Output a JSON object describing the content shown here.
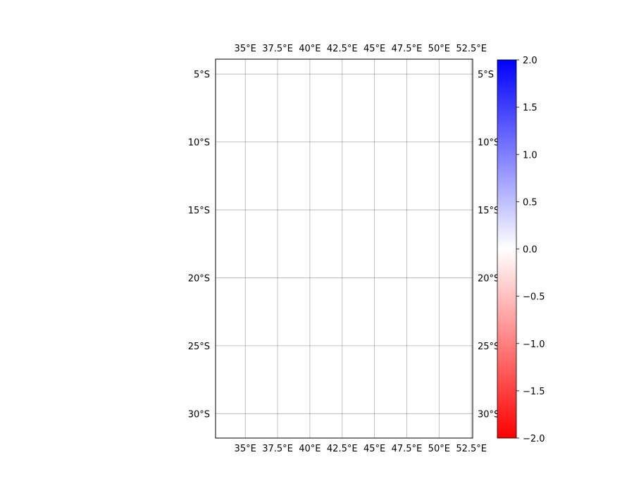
{
  "chart_data": {
    "type": "heatmap",
    "title": "",
    "xlabel": "",
    "ylabel": "",
    "xlim": [
      32.7,
      52.6
    ],
    "ylim": [
      -31.8,
      -3.9
    ],
    "grid": true,
    "x_ticks": [
      {
        "value": 35,
        "label": "35°E"
      },
      {
        "value": 37.5,
        "label": "37.5°E"
      },
      {
        "value": 40,
        "label": "40°E"
      },
      {
        "value": 42.5,
        "label": "42.5°E"
      },
      {
        "value": 45,
        "label": "45°E"
      },
      {
        "value": 47.5,
        "label": "47.5°E"
      },
      {
        "value": 50,
        "label": "50°E"
      },
      {
        "value": 52.5,
        "label": "52.5°E"
      }
    ],
    "y_ticks": [
      {
        "value": -5,
        "label": "5°S"
      },
      {
        "value": -10,
        "label": "10°S"
      },
      {
        "value": -15,
        "label": "15°S"
      },
      {
        "value": -20,
        "label": "20°S"
      },
      {
        "value": -25,
        "label": "25°S"
      },
      {
        "value": -30,
        "label": "30°S"
      }
    ],
    "values": [],
    "colorbar": {
      "range": [
        -2.0,
        2.0
      ],
      "colors": [
        "#ff0000",
        "#ffffff",
        "#0000ff"
      ],
      "ticks": [
        {
          "value": 2.0,
          "label": "2.0"
        },
        {
          "value": 1.5,
          "label": "1.5"
        },
        {
          "value": 1.0,
          "label": "1.0"
        },
        {
          "value": 0.5,
          "label": "0.5"
        },
        {
          "value": 0.0,
          "label": "0.0"
        },
        {
          "value": -0.5,
          "label": "−0.5"
        },
        {
          "value": -1.0,
          "label": "−1.0"
        },
        {
          "value": -1.5,
          "label": "−1.5"
        },
        {
          "value": -2.0,
          "label": "−2.0"
        }
      ]
    }
  }
}
